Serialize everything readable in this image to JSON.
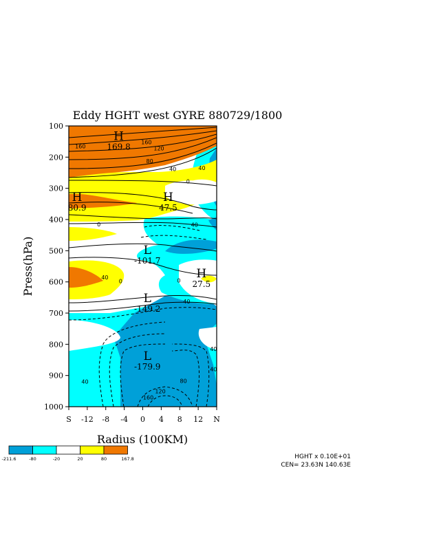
{
  "chart_data": {
    "type": "heatmap",
    "title": "Eddy HGHT west GYRE 880729/1800",
    "xlabel": "Radius (100KM)",
    "ylabel": "Press(hPa)",
    "x_ticks": [
      "S",
      "-12",
      "-8",
      "-4",
      "0",
      "4",
      "8",
      "12",
      "N"
    ],
    "y_ticks": [
      "100",
      "200",
      "300",
      "400",
      "500",
      "600",
      "700",
      "800",
      "900",
      "1000"
    ],
    "xlim": [
      -16,
      16
    ],
    "ylim": [
      100,
      1000
    ],
    "y_inverted": true,
    "colorbar": {
      "boundaries": [
        "-211.6",
        "-80",
        "-20",
        "20",
        "80",
        "167.8"
      ],
      "colors": [
        "#00a0d8",
        "#00ffff",
        "#ffffff",
        "#ffff00",
        "#f07800"
      ]
    },
    "contour_labels": [
      {
        "text": "160",
        "x": -13.5,
        "y": 165
      },
      {
        "text": "160",
        "x": 0.8,
        "y": 152
      },
      {
        "text": "120",
        "x": 3.5,
        "y": 172
      },
      {
        "text": "80",
        "x": 1.5,
        "y": 213
      },
      {
        "text": "40",
        "x": 6.5,
        "y": 238
      },
      {
        "text": "0",
        "x": 9.8,
        "y": 278
      },
      {
        "text": "0",
        "x": -9.5,
        "y": 415
      },
      {
        "text": "40",
        "x": -8.2,
        "y": 585
      },
      {
        "text": "0",
        "x": -4.8,
        "y": 597
      },
      {
        "text": "0",
        "x": 7.8,
        "y": 595
      },
      {
        "text": "40",
        "x": 12.8,
        "y": 235
      },
      {
        "text": "40",
        "x": 11.2,
        "y": 416
      },
      {
        "text": "40",
        "x": 9.5,
        "y": 663
      },
      {
        "text": "40",
        "x": -12.5,
        "y": 920
      },
      {
        "text": "40",
        "x": 15.3,
        "y": 815
      },
      {
        "text": "40",
        "x": 15.3,
        "y": 880
      },
      {
        "text": "80",
        "x": 8.8,
        "y": 917
      },
      {
        "text": "120",
        "x": 3.8,
        "y": 950
      },
      {
        "text": "160",
        "x": 1.2,
        "y": 970
      }
    ],
    "extrema": [
      {
        "label": "H",
        "value": "169.8",
        "x": -5.2,
        "y": 145
      },
      {
        "label": "H",
        "value": "80.9",
        "x": -14.2,
        "y": 340
      },
      {
        "label": "H",
        "value": "47.5",
        "x": 5.5,
        "y": 340
      },
      {
        "label": "L",
        "value": "-101.7",
        "x": 1.0,
        "y": 510
      },
      {
        "label": "L",
        "value": "-149.2",
        "x": 1.0,
        "y": 665
      },
      {
        "label": "L",
        "value": "-179.9",
        "x": 1.0,
        "y": 850
      },
      {
        "label": "H",
        "value": "27.5",
        "x": 12.7,
        "y": 585
      }
    ]
  },
  "footer": {
    "scale_text": "HGHT x  0.10E+01",
    "center_text": "CEN= 23.63N  140.63E"
  }
}
